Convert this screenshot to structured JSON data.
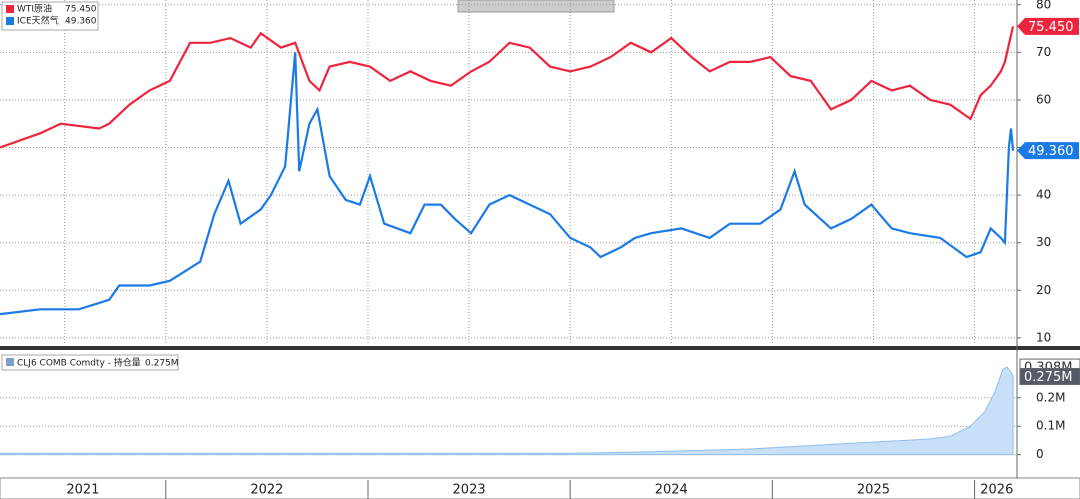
{
  "chart_data": [
    {
      "type": "line",
      "xlim": [
        2021.18,
        2026.2
      ],
      "ylim": [
        8.5,
        81
      ],
      "yticks": [
        10,
        20,
        30,
        40,
        50,
        60,
        70,
        80
      ],
      "grid": true,
      "xgrid": [
        2021.5,
        2022,
        2022.5,
        2023,
        2023.5,
        2024,
        2024.5,
        2025,
        2025.5,
        2026
      ],
      "series": [
        {
          "name": "WTI原油",
          "color": "#f0233c",
          "last_label": "75.450",
          "x": [
            2021.18,
            2021.38,
            2021.48,
            2021.67,
            2021.72,
            2021.82,
            2021.92,
            2022.02,
            2022.12,
            2022.22,
            2022.32,
            2022.42,
            2022.47,
            2022.57,
            2022.64,
            2022.71,
            2022.76,
            2022.81,
            2022.91,
            2023.01,
            2023.11,
            2023.21,
            2023.31,
            2023.41,
            2023.51,
            2023.6,
            2023.7,
            2023.8,
            2023.9,
            2024.0,
            2024.1,
            2024.2,
            2024.3,
            2024.4,
            2024.5,
            2024.6,
            2024.69,
            2024.79,
            2024.89,
            2024.99,
            2025.09,
            2025.19,
            2025.29,
            2025.39,
            2025.49,
            2025.59,
            2025.68,
            2025.78,
            2025.88,
            2025.98,
            2026.03,
            2026.08,
            2026.13,
            2026.15,
            2026.19
          ],
          "values": [
            50,
            53,
            55,
            54,
            55,
            59,
            62,
            64,
            72,
            72,
            73,
            71,
            74,
            71,
            72,
            64,
            62,
            67,
            68,
            67,
            64,
            66,
            64,
            63,
            66,
            68,
            72,
            71,
            67,
            66,
            67,
            69,
            72,
            70,
            73,
            69,
            66,
            68,
            68,
            69,
            65,
            64,
            58,
            60,
            64,
            62,
            63,
            60,
            59,
            56,
            61,
            63,
            66,
            68,
            75.45
          ]
        },
        {
          "name": "ICE天然气",
          "color": "#1a7ae6",
          "last_label": "49.360",
          "x": [
            2021.18,
            2021.38,
            2021.57,
            2021.72,
            2021.77,
            2021.92,
            2022.02,
            2022.17,
            2022.24,
            2022.31,
            2022.37,
            2022.47,
            2022.52,
            2022.59,
            2022.64,
            2022.66,
            2022.71,
            2022.75,
            2022.81,
            2022.89,
            2022.96,
            2023.01,
            2023.08,
            2023.21,
            2023.28,
            2023.36,
            2023.43,
            2023.51,
            2023.6,
            2023.7,
            2023.8,
            2023.9,
            2024.0,
            2024.1,
            2024.15,
            2024.25,
            2024.32,
            2024.4,
            2024.55,
            2024.69,
            2024.79,
            2024.94,
            2025.04,
            2025.11,
            2025.16,
            2025.29,
            2025.39,
            2025.49,
            2025.59,
            2025.68,
            2025.83,
            2025.96,
            2026.03,
            2026.08,
            2026.13,
            2026.15,
            2026.17,
            2026.18,
            2026.19
          ],
          "values": [
            15,
            16,
            16,
            18,
            21,
            21,
            22,
            26,
            36,
            43,
            34,
            37,
            40,
            46,
            70,
            45,
            55,
            58,
            44,
            39,
            38,
            44,
            34,
            32,
            38,
            38,
            35,
            32,
            38,
            40,
            38,
            36,
            31,
            29,
            27,
            29,
            31,
            32,
            33,
            31,
            34,
            34,
            37,
            45,
            38,
            33,
            35,
            38,
            33,
            32,
            31,
            27,
            28,
            33,
            31,
            30,
            50,
            54,
            49.36
          ]
        }
      ]
    },
    {
      "type": "area",
      "xlim": [
        2021.18,
        2026.2
      ],
      "ylim": [
        -82000,
        368000
      ],
      "yticks": [
        0,
        {
          "value": 100000,
          "label": "0.1M"
        },
        {
          "value": 200000,
          "label": "0.2M"
        }
      ],
      "grid": true,
      "xticks": [
        {
          "value": 2021.59,
          "label": "2021"
        },
        {
          "value": 2022.5,
          "label": "2022"
        },
        {
          "value": 2023.5,
          "label": "2023"
        },
        {
          "value": 2024.5,
          "label": "2024"
        },
        {
          "value": 2025.5,
          "label": "2025"
        },
        {
          "value": 2026.11,
          "label": "2026"
        }
      ],
      "year_starts": [
        2022,
        2023,
        2024,
        2025,
        2026
      ],
      "markers": [
        {
          "value": 308000,
          "label": "0.308M"
        },
        {
          "value": 275000,
          "label": "0.275M"
        }
      ],
      "series": [
        {
          "name": "CLJ6 COMB Comdty - 持仓量",
          "color": "#c7e0f7",
          "last_label": "0.275M",
          "x": [
            2021.18,
            2024.0,
            2024.4,
            2024.89,
            2025.39,
            2025.78,
            2025.88,
            2025.98,
            2026.05,
            2026.1,
            2026.14,
            2026.16,
            2026.18,
            2026.19
          ],
          "values": [
            5000,
            5000,
            10000,
            20000,
            40000,
            55000,
            65000,
            100000,
            150000,
            220000,
            300000,
            308000,
            290000,
            275000
          ]
        }
      ]
    }
  ]
}
